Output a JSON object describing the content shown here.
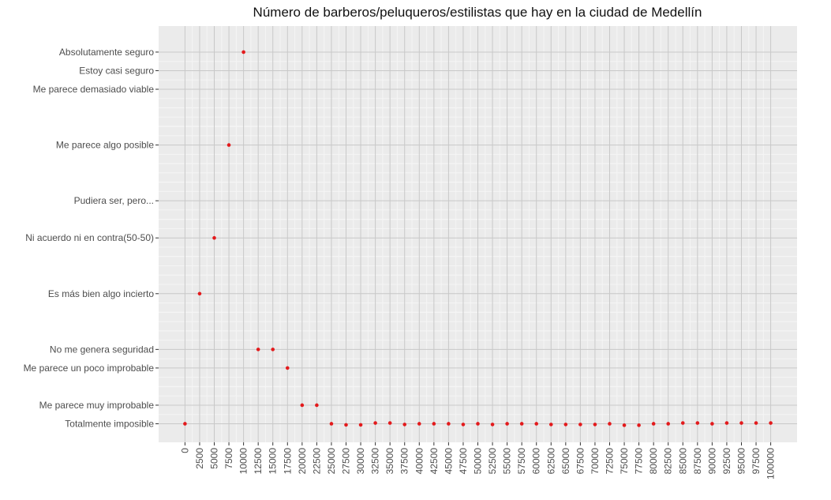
{
  "chart_data": {
    "type": "scatter",
    "title": "Número de barberos/peluqueros/estilistas que hay en la ciudad de Medellín",
    "xlabel": "",
    "ylabel": "",
    "x_ticks": [
      0,
      2500,
      5000,
      7500,
      10000,
      12500,
      15000,
      17500,
      20000,
      22500,
      25000,
      27500,
      30000,
      32500,
      35000,
      37500,
      40000,
      42500,
      45000,
      47500,
      50000,
      52500,
      55000,
      57500,
      60000,
      62500,
      65000,
      67500,
      70000,
      72500,
      75000,
      77500,
      80000,
      82500,
      85000,
      87500,
      90000,
      92500,
      95000,
      97500,
      100000
    ],
    "xlim": [
      -4500,
      104500
    ],
    "y_scale": [
      0,
      100
    ],
    "ylim": [
      -5,
      107
    ],
    "y_categories": [
      {
        "label": "Absolutamente seguro",
        "value": 100
      },
      {
        "label": "Estoy casi seguro",
        "value": 95
      },
      {
        "label": "Me parece demasiado viable",
        "value": 90
      },
      {
        "label": "Me parece algo posible",
        "value": 75
      },
      {
        "label": "Pudiera ser, pero...",
        "value": 60
      },
      {
        "label": "Ni acuerdo ni en contra(50-50)",
        "value": 50
      },
      {
        "label": "Es más bien algo incierto",
        "value": 35
      },
      {
        "label": "No me genera seguridad",
        "value": 20
      },
      {
        "label": "Me parece un poco improbable",
        "value": 15
      },
      {
        "label": "Me parece muy improbable",
        "value": 5
      },
      {
        "label": "Totalmente imposible",
        "value": 0
      }
    ],
    "points": [
      {
        "x": 0,
        "y": 0
      },
      {
        "x": 2500,
        "y": 35
      },
      {
        "x": 5000,
        "y": 50
      },
      {
        "x": 7500,
        "y": 75
      },
      {
        "x": 10000,
        "y": 100
      },
      {
        "x": 12500,
        "y": 20
      },
      {
        "x": 15000,
        "y": 20
      },
      {
        "x": 17500,
        "y": 15
      },
      {
        "x": 20000,
        "y": 5
      },
      {
        "x": 22500,
        "y": 5
      },
      {
        "x": 25000,
        "y": 0
      },
      {
        "x": 27500,
        "y": -0.3
      },
      {
        "x": 30000,
        "y": -0.3
      },
      {
        "x": 32500,
        "y": 0.2
      },
      {
        "x": 35000,
        "y": 0.2
      },
      {
        "x": 37500,
        "y": -0.2
      },
      {
        "x": 40000,
        "y": 0
      },
      {
        "x": 42500,
        "y": 0
      },
      {
        "x": 45000,
        "y": 0
      },
      {
        "x": 47500,
        "y": -0.2
      },
      {
        "x": 50000,
        "y": 0
      },
      {
        "x": 52500,
        "y": -0.2
      },
      {
        "x": 55000,
        "y": 0
      },
      {
        "x": 57500,
        "y": 0
      },
      {
        "x": 60000,
        "y": 0
      },
      {
        "x": 62500,
        "y": -0.2
      },
      {
        "x": 65000,
        "y": -0.2
      },
      {
        "x": 67500,
        "y": -0.2
      },
      {
        "x": 70000,
        "y": -0.2
      },
      {
        "x": 72500,
        "y": 0
      },
      {
        "x": 75000,
        "y": -0.4
      },
      {
        "x": 77500,
        "y": -0.4
      },
      {
        "x": 80000,
        "y": 0
      },
      {
        "x": 82500,
        "y": 0
      },
      {
        "x": 85000,
        "y": 0.2
      },
      {
        "x": 87500,
        "y": 0.2
      },
      {
        "x": 90000,
        "y": 0
      },
      {
        "x": 92500,
        "y": 0.2
      },
      {
        "x": 95000,
        "y": 0.2
      },
      {
        "x": 97500,
        "y": 0.2
      },
      {
        "x": 100000,
        "y": 0.2
      }
    ],
    "point_color": "#e31a1c",
    "panel_color": "#ebebeb",
    "major_grid_color": "#c8c8c8",
    "minor_grid_color": "#f5f5f5",
    "grid": true,
    "legend": "none"
  }
}
